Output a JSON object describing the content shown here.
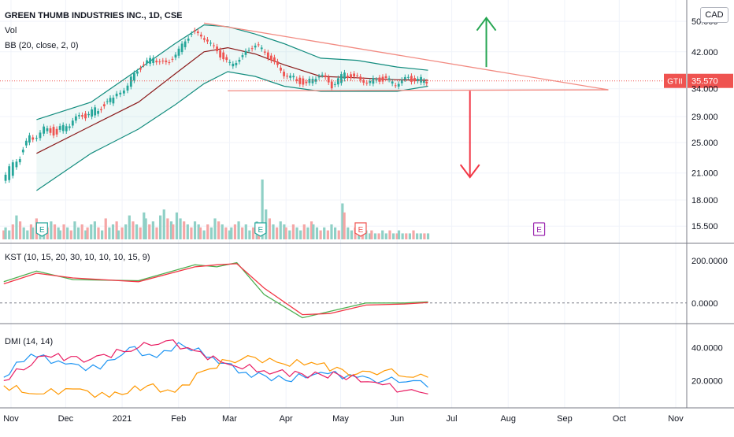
{
  "header": {
    "symbol_title": "GREEN THUMB INDUSTRIES INC., 1D, CSE",
    "vol_label": "Vol",
    "bb_label": "BB (20, close, 2, 0)",
    "currency_button": "CAD"
  },
  "last_price": {
    "ticker": "GTII",
    "value": "35.570",
    "color": "#ef5350"
  },
  "chart_data": [
    {
      "type": "candlestick",
      "title": "GREEN THUMB INDUSTRIES INC., 1D, CSE",
      "y_scale": "log",
      "ylim": [
        14.5,
        54
      ],
      "y_ticks": [
        "50.000",
        "42.000",
        "34.000",
        "29.000",
        "25.000",
        "21.000",
        "18.000",
        "15.500"
      ],
      "x_ticks": [
        "Nov",
        "Dec",
        "2021",
        "Feb",
        "Mar",
        "Apr",
        "May",
        "Jun",
        "Jul",
        "Aug",
        "Sep",
        "Oct",
        "Nov"
      ],
      "close_series": [
        {
          "date": "2020-10-28",
          "close": 20.0
        },
        {
          "date": "2020-11-05",
          "close": 22.5
        },
        {
          "date": "2020-11-12",
          "close": 25.5
        },
        {
          "date": "2020-11-20",
          "close": 27.0
        },
        {
          "date": "2020-11-27",
          "close": 26.5
        },
        {
          "date": "2020-12-04",
          "close": 28.0
        },
        {
          "date": "2020-12-11",
          "close": 29.0
        },
        {
          "date": "2020-12-18",
          "close": 30.0
        },
        {
          "date": "2020-12-28",
          "close": 32.0
        },
        {
          "date": "2021-01-05",
          "close": 35.0
        },
        {
          "date": "2021-01-12",
          "close": 38.5
        },
        {
          "date": "2021-01-19",
          "close": 40.5
        },
        {
          "date": "2021-01-26",
          "close": 39.0
        },
        {
          "date": "2021-02-02",
          "close": 42.5
        },
        {
          "date": "2021-02-09",
          "close": 47.0
        },
        {
          "date": "2021-02-16",
          "close": 45.5
        },
        {
          "date": "2021-02-23",
          "close": 42.0
        },
        {
          "date": "2021-03-02",
          "close": 39.0
        },
        {
          "date": "2021-03-09",
          "close": 41.0
        },
        {
          "date": "2021-03-16",
          "close": 44.0
        },
        {
          "date": "2021-03-23",
          "close": 41.0
        },
        {
          "date": "2021-03-30",
          "close": 37.5
        },
        {
          "date": "2021-04-06",
          "close": 36.0
        },
        {
          "date": "2021-04-13",
          "close": 35.0
        },
        {
          "date": "2021-04-20",
          "close": 37.0
        },
        {
          "date": "2021-04-27",
          "close": 34.5
        },
        {
          "date": "2021-05-04",
          "close": 37.0
        },
        {
          "date": "2021-05-11",
          "close": 36.0
        },
        {
          "date": "2021-05-18",
          "close": 35.5
        },
        {
          "date": "2021-05-25",
          "close": 36.0
        },
        {
          "date": "2021-06-01",
          "close": 35.0
        },
        {
          "date": "2021-06-08",
          "close": 36.0
        },
        {
          "date": "2021-06-15",
          "close": 35.8
        },
        {
          "date": "2021-06-18",
          "close": 35.57
        }
      ],
      "bollinger": {
        "upper": [
          {
            "date": "2020-11-15",
            "value": 28.5
          },
          {
            "date": "2020-12-15",
            "value": 31.5
          },
          {
            "date": "2021-01-10",
            "value": 38.0
          },
          {
            "date": "2021-01-30",
            "value": 44.0
          },
          {
            "date": "2021-02-15",
            "value": 49.0
          },
          {
            "date": "2021-02-28",
            "value": 48.5
          },
          {
            "date": "2021-03-15",
            "value": 46.5
          },
          {
            "date": "2021-03-31",
            "value": 44.0
          },
          {
            "date": "2021-04-20",
            "value": 40.5
          },
          {
            "date": "2021-05-10",
            "value": 40.0
          },
          {
            "date": "2021-06-01",
            "value": 38.5
          },
          {
            "date": "2021-06-18",
            "value": 37.8
          }
        ],
        "middle": [
          {
            "date": "2020-11-15",
            "value": 23.5
          },
          {
            "date": "2020-12-15",
            "value": 27.5
          },
          {
            "date": "2021-01-10",
            "value": 31.5
          },
          {
            "date": "2021-01-30",
            "value": 37.0
          },
          {
            "date": "2021-02-15",
            "value": 42.0
          },
          {
            "date": "2021-02-28",
            "value": 43.0
          },
          {
            "date": "2021-03-15",
            "value": 41.5
          },
          {
            "date": "2021-03-31",
            "value": 39.0
          },
          {
            "date": "2021-04-20",
            "value": 36.5
          },
          {
            "date": "2021-05-10",
            "value": 36.2
          },
          {
            "date": "2021-06-01",
            "value": 35.8
          },
          {
            "date": "2021-06-18",
            "value": 35.7
          }
        ],
        "lower": [
          {
            "date": "2020-11-15",
            "value": 19.0
          },
          {
            "date": "2020-12-15",
            "value": 23.5
          },
          {
            "date": "2021-01-10",
            "value": 27.0
          },
          {
            "date": "2021-01-30",
            "value": 31.0
          },
          {
            "date": "2021-02-15",
            "value": 35.0
          },
          {
            "date": "2021-02-28",
            "value": 37.5
          },
          {
            "date": "2021-03-15",
            "value": 36.5
          },
          {
            "date": "2021-03-31",
            "value": 34.5
          },
          {
            "date": "2021-04-20",
            "value": 33.5
          },
          {
            "date": "2021-05-10",
            "value": 33.5
          },
          {
            "date": "2021-06-01",
            "value": 33.5
          },
          {
            "date": "2021-06-18",
            "value": 34.5
          }
        ]
      },
      "drawings": {
        "triangle_top": [
          {
            "date": "2021-02-15",
            "value": 49.5
          },
          {
            "date": "2021-09-25",
            "value": 33.8
          }
        ],
        "triangle_bottom": [
          {
            "date": "2021-02-28",
            "value": 33.6
          },
          {
            "date": "2021-09-25",
            "value": 33.8
          }
        ],
        "arrow_up": {
          "date": "2021-07-20",
          "from": 38.5,
          "to": 51.0,
          "color": "#26a652"
        },
        "arrow_down": {
          "date": "2021-07-11",
          "from": 33.6,
          "to": 20.5,
          "color": "#f23645"
        }
      },
      "earnings": [
        {
          "label": "E",
          "date": "2020-11-18",
          "kind": "reported"
        },
        {
          "label": "E",
          "date": "2021-03-18",
          "kind": "reported"
        },
        {
          "label": "E",
          "date": "2021-05-12",
          "kind": "reported"
        },
        {
          "label": "E",
          "date": "2021-08-18",
          "kind": "upcoming"
        }
      ],
      "volume": {
        "label": "Vol",
        "bars": [
          3,
          4,
          3,
          5,
          8,
          6,
          4,
          3,
          5,
          4,
          7,
          5,
          3,
          4,
          6,
          5,
          4,
          3,
          5,
          4,
          3,
          6,
          4,
          5,
          3,
          4,
          5,
          6,
          4,
          3,
          7,
          4,
          5,
          6,
          3,
          4,
          5,
          8,
          6,
          5,
          4,
          9,
          7,
          5,
          6,
          4,
          8,
          10,
          7,
          6,
          5,
          9,
          7,
          6,
          5,
          4,
          6,
          5,
          4,
          3,
          5,
          4,
          7,
          6,
          5,
          4,
          3,
          4,
          5,
          6,
          4,
          5,
          3,
          4,
          6,
          5,
          20,
          10,
          7,
          5,
          4,
          6,
          5,
          4,
          3,
          5,
          4,
          3,
          5,
          4,
          6,
          5,
          4,
          3,
          4,
          3,
          5,
          4,
          3,
          12,
          9,
          4,
          3,
          4,
          3,
          4,
          3,
          2,
          3,
          2,
          2,
          3,
          2,
          3,
          2,
          2,
          3,
          2,
          2,
          2,
          3,
          2,
          2,
          2,
          2
        ],
        "up_color": "#8fd0c6",
        "down_color": "#f5a6a6"
      }
    },
    {
      "type": "line",
      "title": "KST (10, 15, 20, 30, 10, 10, 10, 15, 9)",
      "ylim": [
        -90,
        270
      ],
      "y_ticks": [
        "200.0000",
        "0.0000"
      ],
      "series": [
        {
          "name": "KST",
          "color": "#4caf50",
          "points": [
            {
              "date": "2020-10-28",
              "value": 100
            },
            {
              "date": "2020-11-15",
              "value": 150
            },
            {
              "date": "2020-12-05",
              "value": 110
            },
            {
              "date": "2021-01-10",
              "value": 105
            },
            {
              "date": "2021-02-10",
              "value": 180
            },
            {
              "date": "2021-02-22",
              "value": 170
            },
            {
              "date": "2021-03-05",
              "value": 190
            },
            {
              "date": "2021-03-20",
              "value": 40
            },
            {
              "date": "2021-04-10",
              "value": -70
            },
            {
              "date": "2021-04-25",
              "value": -40
            },
            {
              "date": "2021-05-15",
              "value": 0
            },
            {
              "date": "2021-06-05",
              "value": 0
            },
            {
              "date": "2021-06-18",
              "value": 5
            }
          ]
        },
        {
          "name": "Signal",
          "color": "#f23645",
          "points": [
            {
              "date": "2020-10-28",
              "value": 90
            },
            {
              "date": "2020-11-15",
              "value": 140
            },
            {
              "date": "2020-12-05",
              "value": 118
            },
            {
              "date": "2021-01-10",
              "value": 100
            },
            {
              "date": "2021-02-10",
              "value": 170
            },
            {
              "date": "2021-02-22",
              "value": 180
            },
            {
              "date": "2021-03-05",
              "value": 185
            },
            {
              "date": "2021-03-20",
              "value": 70
            },
            {
              "date": "2021-04-10",
              "value": -55
            },
            {
              "date": "2021-04-25",
              "value": -50
            },
            {
              "date": "2021-05-15",
              "value": -10
            },
            {
              "date": "2021-06-05",
              "value": -5
            },
            {
              "date": "2021-06-18",
              "value": 2
            }
          ]
        }
      ]
    },
    {
      "type": "line",
      "title": "DMI (14, 14)",
      "ylim": [
        5,
        53
      ],
      "y_ticks": [
        "40.0000",
        "20.0000"
      ],
      "series": [
        {
          "name": "+DI",
          "color": "#2196f3",
          "points": [
            {
              "date": "2020-10-28",
              "value": 22
            },
            {
              "date": "2020-11-12",
              "value": 36
            },
            {
              "date": "2020-12-01",
              "value": 30
            },
            {
              "date": "2020-12-20",
              "value": 27
            },
            {
              "date": "2021-01-05",
              "value": 40
            },
            {
              "date": "2021-01-20",
              "value": 34
            },
            {
              "date": "2021-02-01",
              "value": 43
            },
            {
              "date": "2021-02-20",
              "value": 34
            },
            {
              "date": "2021-03-10",
              "value": 25
            },
            {
              "date": "2021-04-01",
              "value": 20
            },
            {
              "date": "2021-04-20",
              "value": 25
            },
            {
              "date": "2021-05-10",
              "value": 22
            },
            {
              "date": "2021-05-25",
              "value": 20
            },
            {
              "date": "2021-06-10",
              "value": 20
            },
            {
              "date": "2021-06-18",
              "value": 16
            }
          ]
        },
        {
          "name": "-DI",
          "color": "#ff9800",
          "points": [
            {
              "date": "2020-10-28",
              "value": 17
            },
            {
              "date": "2020-11-15",
              "value": 12
            },
            {
              "date": "2020-12-05",
              "value": 15
            },
            {
              "date": "2020-12-25",
              "value": 10
            },
            {
              "date": "2021-01-15",
              "value": 17
            },
            {
              "date": "2021-01-30",
              "value": 13
            },
            {
              "date": "2021-02-15",
              "value": 26
            },
            {
              "date": "2021-03-01",
              "value": 32
            },
            {
              "date": "2021-03-15",
              "value": 34
            },
            {
              "date": "2021-03-31",
              "value": 30
            },
            {
              "date": "2021-04-15",
              "value": 31
            },
            {
              "date": "2021-05-10",
              "value": 24
            },
            {
              "date": "2021-05-25",
              "value": 26
            },
            {
              "date": "2021-06-10",
              "value": 22
            },
            {
              "date": "2021-06-18",
              "value": 22
            }
          ]
        },
        {
          "name": "ADX",
          "color": "#e91e63",
          "points": [
            {
              "date": "2020-10-28",
              "value": 20
            },
            {
              "date": "2020-11-20",
              "value": 35
            },
            {
              "date": "2020-12-15",
              "value": 33
            },
            {
              "date": "2021-01-10",
              "value": 40
            },
            {
              "date": "2021-01-25",
              "value": 44
            },
            {
              "date": "2021-02-10",
              "value": 38
            },
            {
              "date": "2021-02-28",
              "value": 30
            },
            {
              "date": "2021-03-20",
              "value": 26
            },
            {
              "date": "2021-04-10",
              "value": 24
            },
            {
              "date": "2021-05-01",
              "value": 23
            },
            {
              "date": "2021-05-20",
              "value": 19
            },
            {
              "date": "2021-06-05",
              "value": 14
            },
            {
              "date": "2021-06-18",
              "value": 12
            }
          ]
        }
      ]
    }
  ],
  "panes": {
    "kst_label": "KST (10, 15, 20, 30, 10, 10, 10, 15, 9)",
    "dmi_label": "DMI (14, 14)"
  }
}
